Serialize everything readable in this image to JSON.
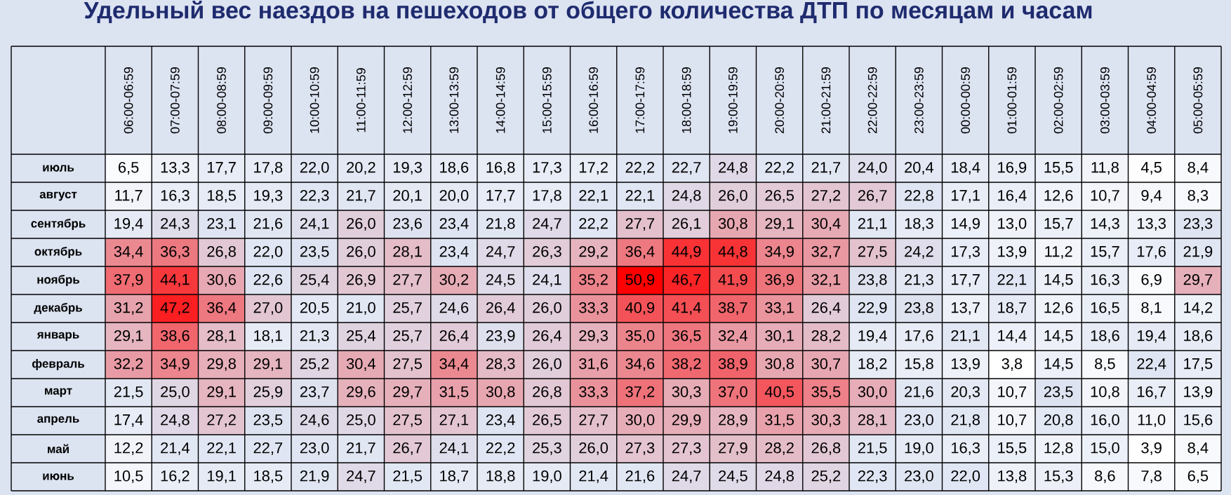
{
  "chart_data": {
    "type": "heatmap",
    "title": "Удельный вес наездов на пешеходов от общего количества ДТП по месяцам и часам",
    "categories": [
      "06:00-06:59",
      "07:00-07:59",
      "08:00-08:59",
      "09:00-09:59",
      "10:00-10:59",
      "11:00-11:59",
      "12:00-12:59",
      "13:00-13:59",
      "14:00-14:59",
      "15:00-15:59",
      "16:00-16:59",
      "17:00-17:59",
      "18:00-18:59",
      "19:00-19:59",
      "20:00-20:59",
      "21:00-21:59",
      "22:00-22:59",
      "23:00-23:59",
      "00:00-00:59",
      "01:00-01:59",
      "02:00-02:59",
      "03:00-03:59",
      "04:00-04:59",
      "05:00-05:59"
    ],
    "y_categories": [
      "июль",
      "август",
      "сентябрь",
      "октябрь",
      "ноябрь",
      "декабрь",
      "январь",
      "февраль",
      "март",
      "апрель",
      "май",
      "июнь"
    ],
    "cells": [
      [
        6.5,
        13.3,
        17.7,
        17.8,
        22.0,
        20.2,
        19.3,
        18.6,
        16.8,
        17.3,
        17.2,
        22.2,
        22.7,
        24.8,
        22.2,
        21.7,
        24.0,
        20.4,
        18.4,
        16.9,
        15.5,
        11.8,
        4.5,
        8.4
      ],
      [
        11.7,
        16.3,
        18.5,
        19.3,
        22.3,
        21.7,
        20.1,
        20.0,
        17.7,
        17.8,
        22.1,
        22.1,
        24.8,
        26.0,
        26.5,
        27.2,
        26.7,
        22.8,
        17.1,
        16.4,
        12.6,
        10.7,
        9.4,
        8.3
      ],
      [
        19.4,
        24.3,
        23.1,
        21.6,
        24.1,
        26.0,
        23.6,
        23.4,
        21.8,
        24.7,
        22.2,
        27.7,
        26.1,
        30.8,
        29.1,
        30.4,
        21.1,
        18.3,
        14.9,
        13.0,
        15.7,
        14.3,
        13.3,
        23.3
      ],
      [
        34.4,
        36.3,
        26.8,
        22.0,
        23.5,
        26.0,
        28.1,
        23.4,
        24.7,
        26.3,
        29.2,
        36.4,
        44.9,
        44.8,
        34.9,
        32.7,
        27.5,
        24.2,
        17.3,
        13.9,
        11.2,
        15.7,
        17.6,
        21.9
      ],
      [
        37.9,
        44.1,
        30.6,
        22.6,
        25.4,
        26.9,
        27.7,
        30.2,
        24.5,
        24.1,
        35.2,
        50.9,
        46.7,
        41.9,
        36.9,
        32.1,
        23.8,
        21.3,
        17.7,
        22.1,
        14.5,
        16.3,
        6.9,
        29.7
      ],
      [
        31.2,
        47.2,
        36.4,
        27.0,
        20.5,
        21.0,
        25.7,
        24.6,
        26.4,
        26.0,
        33.3,
        40.9,
        41.4,
        38.7,
        33.1,
        26.4,
        22.9,
        23.8,
        13.7,
        18.7,
        12.6,
        16.5,
        8.1,
        14.2
      ],
      [
        29.1,
        38.6,
        28.1,
        18.1,
        21.3,
        25.4,
        25.7,
        26.4,
        23.9,
        26.4,
        29.3,
        35.0,
        36.5,
        32.4,
        30.1,
        28.2,
        19.4,
        17.6,
        21.1,
        14.4,
        14.5,
        18.6,
        19.4,
        18.6
      ],
      [
        32.2,
        34.9,
        29.8,
        29.1,
        25.2,
        30.4,
        27.5,
        34.4,
        28.3,
        26.0,
        31.6,
        34.6,
        38.2,
        38.9,
        30.8,
        30.7,
        18.2,
        15.8,
        13.9,
        3.8,
        14.5,
        8.5,
        22.4,
        17.5
      ],
      [
        21.5,
        25.0,
        29.1,
        25.9,
        23.7,
        29.6,
        29.7,
        31.5,
        30.8,
        26.8,
        33.3,
        37.2,
        30.3,
        37.0,
        40.5,
        35.5,
        30.0,
        21.6,
        20.3,
        10.7,
        23.5,
        10.8,
        16.7,
        13.9
      ],
      [
        17.4,
        24.8,
        27.2,
        23.5,
        24.6,
        25.0,
        27.5,
        27.1,
        23.4,
        26.5,
        27.7,
        30.0,
        29.9,
        28.9,
        31.5,
        30.3,
        28.1,
        23.0,
        21.8,
        10.7,
        20.8,
        16.0,
        11.0,
        15.6
      ],
      [
        12.2,
        21.4,
        22.1,
        22.7,
        23.0,
        21.7,
        26.7,
        24.1,
        22.2,
        25.3,
        26.0,
        27.3,
        27.3,
        27.9,
        28.2,
        26.8,
        21.5,
        19.0,
        16.3,
        15.5,
        12.8,
        15.0,
        3.9,
        8.4
      ],
      [
        10.5,
        16.2,
        19.1,
        18.5,
        21.9,
        24.7,
        21.5,
        18.7,
        18.8,
        19.0,
        21.4,
        21.6,
        24.7,
        24.5,
        24.8,
        25.2,
        22.3,
        23.0,
        22.0,
        13.8,
        15.3,
        8.6,
        7.8,
        6.5
      ]
    ],
    "cell_labels": [
      [
        "6,5",
        "13,3",
        "17,7",
        "17,8",
        "22,0",
        "20,2",
        "19,3",
        "18,6",
        "16,8",
        "17,3",
        "17,2",
        "22,2",
        "22,7",
        "24,8",
        "22,2",
        "21,7",
        "24,0",
        "20,4",
        "18,4",
        "16,9",
        "15,5",
        "11,8",
        "4,5",
        "8,4"
      ],
      [
        "11,7",
        "16,3",
        "18,5",
        "19,3",
        "22,3",
        "21,7",
        "20,1",
        "20,0",
        "17,7",
        "17,8",
        "22,1",
        "22,1",
        "24,8",
        "26,0",
        "26,5",
        "27,2",
        "26,7",
        "22,8",
        "17,1",
        "16,4",
        "12,6",
        "10,7",
        "9,4",
        "8,3"
      ],
      [
        "19,4",
        "24,3",
        "23,1",
        "21,6",
        "24,1",
        "26,0",
        "23,6",
        "23,4",
        "21,8",
        "24,7",
        "22,2",
        "27,7",
        "26,1",
        "30,8",
        "29,1",
        "30,4",
        "21,1",
        "18,3",
        "14,9",
        "13,0",
        "15,7",
        "14,3",
        "13,3",
        "23,3"
      ],
      [
        "34,4",
        "36,3",
        "26,8",
        "22,0",
        "23,5",
        "26,0",
        "28,1",
        "23,4",
        "24,7",
        "26,3",
        "29,2",
        "36,4",
        "44,9",
        "44,8",
        "34,9",
        "32,7",
        "27,5",
        "24,2",
        "17,3",
        "13,9",
        "11,2",
        "15,7",
        "17,6",
        "21,9"
      ],
      [
        "37,9",
        "44,1",
        "30,6",
        "22,6",
        "25,4",
        "26,9",
        "27,7",
        "30,2",
        "24,5",
        "24,1",
        "35,2",
        "50,9",
        "46,7",
        "41,9",
        "36,9",
        "32,1",
        "23,8",
        "21,3",
        "17,7",
        "22,1",
        "14,5",
        "16,3",
        "6,9",
        "29,7"
      ],
      [
        "31,2",
        "47,2",
        "36,4",
        "27,0",
        "20,5",
        "21,0",
        "25,7",
        "24,6",
        "26,4",
        "26,0",
        "33,3",
        "40,9",
        "41,4",
        "38,7",
        "33,1",
        "26,4",
        "22,9",
        "23,8",
        "13,7",
        "18,7",
        "12,6",
        "16,5",
        "8,1",
        "14,2"
      ],
      [
        "29,1",
        "38,6",
        "28,1",
        "18,1",
        "21,3",
        "25,4",
        "25,7",
        "26,4",
        "23,9",
        "26,4",
        "29,3",
        "35,0",
        "36,5",
        "32,4",
        "30,1",
        "28,2",
        "19,4",
        "17,6",
        "21,1",
        "14,4",
        "14,5",
        "18,6",
        "19,4",
        "18,6"
      ],
      [
        "32,2",
        "34,9",
        "29,8",
        "29,1",
        "25,2",
        "30,4",
        "27,5",
        "34,4",
        "28,3",
        "26,0",
        "31,6",
        "34,6",
        "38,2",
        "38,9",
        "30,8",
        "30,7",
        "18,2",
        "15,8",
        "13,9",
        "3,8",
        "14,5",
        "8,5",
        "22,4",
        "17,5"
      ],
      [
        "21,5",
        "25,0",
        "29,1",
        "25,9",
        "23,7",
        "29,6",
        "29,7",
        "31,5",
        "30,8",
        "26,8",
        "33,3",
        "37,2",
        "30,3",
        "37,0",
        "40,5",
        "35,5",
        "30,0",
        "21,6",
        "20,3",
        "10,7",
        "23,5",
        "10,8",
        "16,7",
        "13,9"
      ],
      [
        "17,4",
        "24,8",
        "27,2",
        "23,5",
        "24,6",
        "25,0",
        "27,5",
        "27,1",
        "23,4",
        "26,5",
        "27,7",
        "30,0",
        "29,9",
        "28,9",
        "31,5",
        "30,3",
        "28,1",
        "23,0",
        "21,8",
        "10,7",
        "20,8",
        "16,0",
        "11,0",
        "15,6"
      ],
      [
        "12,2",
        "21,4",
        "22,1",
        "22,7",
        "23,0",
        "21,7",
        "26,7",
        "24,1",
        "22,2",
        "25,3",
        "26,0",
        "27,3",
        "27,3",
        "27,9",
        "28,2",
        "26,8",
        "21,5",
        "19,0",
        "16,3",
        "15,5",
        "12,8",
        "15,0",
        "3,9",
        "8,4"
      ],
      [
        "10,5",
        "16,2",
        "19,1",
        "18,5",
        "21,9",
        "24,7",
        "21,5",
        "18,7",
        "18,8",
        "19,0",
        "21,4",
        "21,6",
        "24,7",
        "24,5",
        "24,8",
        "25,2",
        "22,3",
        "23,0",
        "22,0",
        "13,8",
        "15,3",
        "8,6",
        "7,8",
        "6,5"
      ]
    ]
  }
}
